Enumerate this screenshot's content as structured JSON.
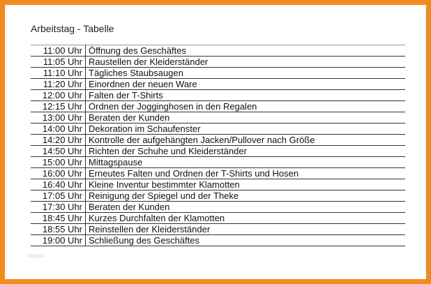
{
  "title": "Arbeitstag - Tabelle",
  "colors": {
    "frame": "#f28a1e"
  },
  "rows": [
    {
      "time": "11:00 Uhr",
      "task": "Öffnung des Geschäftes"
    },
    {
      "time": "11:05 Uhr",
      "task": "Raustellen der Kleiderständer"
    },
    {
      "time": "11:10 Uhr",
      "task": "Tägliches Staubsaugen"
    },
    {
      "time": "11:20 Uhr",
      "task": "Einordnen der neuen Ware"
    },
    {
      "time": "12:00 Uhr",
      "task": "Falten der T-Shirts"
    },
    {
      "time": "12:15 Uhr",
      "task": "Ordnen der Jogginghosen in den Regalen"
    },
    {
      "time": "13:00 Uhr",
      "task": "Beraten der Kunden"
    },
    {
      "time": "14:00 Uhr",
      "task": "Dekoration im Schaufenster"
    },
    {
      "time": "14:20 Uhr",
      "task": "Kontrolle der aufgehängten Jacken/Pullover nach Größe"
    },
    {
      "time": "14:50 Uhr",
      "task": "Richten der Schuhe und Kleiderständer"
    },
    {
      "time": "15:00 Uhr",
      "task": "Mittagspause"
    },
    {
      "time": "16:00 Uhr",
      "task": "Erneutes Falten und Ordnen der T-Shirts und Hosen"
    },
    {
      "time": "16:40 Uhr",
      "task": "Kleine Inventur bestimmter Klamotten"
    },
    {
      "time": "17:05 Uhr",
      "task": "Reinigung der Spiegel und der Theke"
    },
    {
      "time": "17:30 Uhr",
      "task": "Beraten der Kunden"
    },
    {
      "time": "18:45 Uhr",
      "task": "Kurzes Durchfalten der Klamotten"
    },
    {
      "time": "18:55 Uhr",
      "task": "Reinstellen der Kleiderständer"
    },
    {
      "time": "19:00 Uhr",
      "task": "Schließung des Geschäftes"
    }
  ],
  "watermark": "klagao"
}
